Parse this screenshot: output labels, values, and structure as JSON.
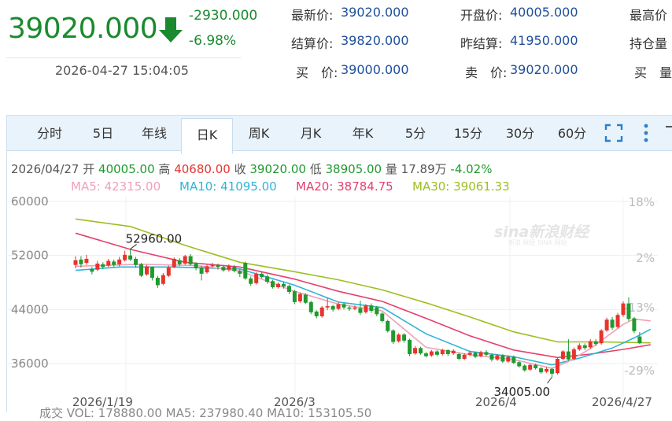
{
  "quote": {
    "price": "39020.000",
    "change": "-2930.000",
    "change_pct": "-6.98%",
    "datetime": "2026-04-27 15:04:05",
    "direction": "down-arrow-icon"
  },
  "fields": [
    {
      "label": "最新价:",
      "value": "39020.000"
    },
    {
      "label": "开盘价:",
      "value": "40005.000"
    },
    {
      "label": "最高价",
      "value": ""
    },
    {
      "label": "结算价:",
      "value": "39820.000"
    },
    {
      "label": "昨结算:",
      "value": "41950.000"
    },
    {
      "label": "持仓量",
      "value": ""
    },
    {
      "label": "买　价:",
      "value": "39000.000"
    },
    {
      "label": "卖　价:",
      "value": "39020.000"
    },
    {
      "label": "买　量",
      "value": ""
    }
  ],
  "tabs": [
    "分时",
    "5日",
    "年线",
    "日K",
    "周K",
    "月K",
    "年K",
    "5分",
    "15分",
    "30分",
    "60分"
  ],
  "active_tab": "日K",
  "info": {
    "date": "2026/04/27",
    "open_label": "开",
    "open": "40005.00",
    "high_label": "高",
    "high": "40680.00",
    "close_label": "收",
    "close": "39020.00",
    "low_label": "低",
    "low": "38905.00",
    "vol_label": "量",
    "vol": "17.89万",
    "pct": "-4.02%"
  },
  "ma": {
    "ma5": "MA5: 42315.00",
    "ma10": "MA10: 41095.00",
    "ma20": "MA20: 38784.75",
    "ma30": "MA30: 39061.33"
  },
  "watermark": {
    "logo": "sina新浪财经",
    "sub": "新浪 财经 SINA 网站"
  },
  "bottom_cut_text": "成交  VOL: 178880.00  MA5: 237980.40  MA10: 153105.50",
  "colors": {
    "up": "#e8332d",
    "down": "#1f9a2e",
    "ma5": "#f1a0b8",
    "ma10": "#2fb4d8",
    "ma20": "#e6406e",
    "ma30": "#9cbf1f",
    "price": "#1a8a2e",
    "value": "#1f4f9c"
  },
  "chart_data": {
    "type": "candlestick",
    "y_ticks": [
      "60000",
      "52000",
      "44000",
      "36000"
    ],
    "y_ticks_values": [
      60000,
      52000,
      44000,
      36000
    ],
    "pct_ticks": [
      "18%",
      "2%",
      "-13%",
      "-29%"
    ],
    "x_labels": [
      "2026/1/19",
      "2026/3",
      "2026/4",
      "2026/4/27"
    ],
    "ylim": [
      33000,
      61000
    ],
    "annotations": [
      {
        "text": "52960.00",
        "value": 52960,
        "candle": 10
      },
      {
        "text": "34005.00",
        "value": 34005,
        "candle": 87
      }
    ],
    "candles": [
      {
        "o": 50600,
        "c": 51300,
        "h": 51900,
        "l": 50100
      },
      {
        "o": 51400,
        "c": 50700,
        "h": 51900,
        "l": 50200
      },
      {
        "o": 50900,
        "c": 51500,
        "h": 52100,
        "l": 50600
      },
      {
        "o": 50000,
        "c": 49600,
        "h": 50300,
        "l": 49200
      },
      {
        "o": 49900,
        "c": 50800,
        "h": 51200,
        "l": 49700
      },
      {
        "o": 50700,
        "c": 50300,
        "h": 51000,
        "l": 50000
      },
      {
        "o": 50500,
        "c": 51200,
        "h": 51500,
        "l": 50300
      },
      {
        "o": 51100,
        "c": 50600,
        "h": 51400,
        "l": 50300
      },
      {
        "o": 50700,
        "c": 51400,
        "h": 51800,
        "l": 50400
      },
      {
        "o": 51300,
        "c": 52100,
        "h": 52700,
        "l": 51100
      },
      {
        "o": 52000,
        "c": 51400,
        "h": 52960,
        "l": 51200
      },
      {
        "o": 51500,
        "c": 50600,
        "h": 51800,
        "l": 50200
      },
      {
        "o": 50700,
        "c": 49000,
        "h": 50900,
        "l": 48800
      },
      {
        "o": 49200,
        "c": 50400,
        "h": 50600,
        "l": 49000
      },
      {
        "o": 50300,
        "c": 48700,
        "h": 50400,
        "l": 48300
      },
      {
        "o": 48700,
        "c": 47600,
        "h": 49000,
        "l": 47200
      },
      {
        "o": 47800,
        "c": 49100,
        "h": 49400,
        "l": 47600
      },
      {
        "o": 49000,
        "c": 50200,
        "h": 50500,
        "l": 48800
      },
      {
        "o": 50300,
        "c": 51500,
        "h": 51700,
        "l": 50100
      },
      {
        "o": 51300,
        "c": 50700,
        "h": 51600,
        "l": 50400
      },
      {
        "o": 50800,
        "c": 51900,
        "h": 52100,
        "l": 50600
      },
      {
        "o": 51900,
        "c": 50700,
        "h": 52200,
        "l": 50500
      },
      {
        "o": 50800,
        "c": 50100,
        "h": 51000,
        "l": 49800
      },
      {
        "o": 50200,
        "c": 49300,
        "h": 50500,
        "l": 48300
      },
      {
        "o": 49500,
        "c": 50400,
        "h": 50600,
        "l": 49300
      },
      {
        "o": 50400,
        "c": 50600,
        "h": 50900,
        "l": 50200
      },
      {
        "o": 50600,
        "c": 50300,
        "h": 50800,
        "l": 49900
      },
      {
        "o": 50300,
        "c": 49800,
        "h": 50600,
        "l": 49600
      },
      {
        "o": 49900,
        "c": 50500,
        "h": 50700,
        "l": 49600
      },
      {
        "o": 50300,
        "c": 49700,
        "h": 50600,
        "l": 49500
      },
      {
        "o": 49700,
        "c": 49300,
        "h": 50000,
        "l": 48800
      },
      {
        "o": 50900,
        "c": 48600,
        "h": 51100,
        "l": 48400
      },
      {
        "o": 48600,
        "c": 47800,
        "h": 48900,
        "l": 47500
      },
      {
        "o": 47900,
        "c": 49300,
        "h": 49500,
        "l": 47700
      },
      {
        "o": 49300,
        "c": 48800,
        "h": 49600,
        "l": 48600
      },
      {
        "o": 48900,
        "c": 48100,
        "h": 49200,
        "l": 47800
      },
      {
        "o": 48200,
        "c": 47300,
        "h": 48400,
        "l": 47100
      },
      {
        "o": 47300,
        "c": 47800,
        "h": 48000,
        "l": 47100
      },
      {
        "o": 47800,
        "c": 47400,
        "h": 48100,
        "l": 47100
      },
      {
        "o": 47500,
        "c": 46600,
        "h": 47700,
        "l": 46300
      },
      {
        "o": 46700,
        "c": 45100,
        "h": 46900,
        "l": 44800
      },
      {
        "o": 45200,
        "c": 46300,
        "h": 46500,
        "l": 45000
      },
      {
        "o": 46200,
        "c": 45000,
        "h": 46400,
        "l": 44800
      },
      {
        "o": 45100,
        "c": 43600,
        "h": 45300,
        "l": 43300
      },
      {
        "o": 43700,
        "c": 43000,
        "h": 43900,
        "l": 42700
      },
      {
        "o": 43000,
        "c": 44300,
        "h": 44500,
        "l": 42800
      },
      {
        "o": 44300,
        "c": 44500,
        "h": 45700,
        "l": 43900
      },
      {
        "o": 44500,
        "c": 44000,
        "h": 44700,
        "l": 43700
      },
      {
        "o": 44100,
        "c": 44800,
        "h": 45100,
        "l": 43900
      },
      {
        "o": 44800,
        "c": 44300,
        "h": 45000,
        "l": 44000
      },
      {
        "o": 44300,
        "c": 44100,
        "h": 44500,
        "l": 43800
      },
      {
        "o": 44100,
        "c": 44300,
        "h": 44600,
        "l": 43900
      },
      {
        "o": 44200,
        "c": 43500,
        "h": 45300,
        "l": 43200
      },
      {
        "o": 43600,
        "c": 44600,
        "h": 44800,
        "l": 43400
      },
      {
        "o": 44600,
        "c": 43800,
        "h": 44900,
        "l": 43500
      },
      {
        "o": 44300,
        "c": 43300,
        "h": 44500,
        "l": 43000
      },
      {
        "o": 43400,
        "c": 42300,
        "h": 43600,
        "l": 42100
      },
      {
        "o": 42300,
        "c": 40800,
        "h": 42500,
        "l": 40600
      },
      {
        "o": 40900,
        "c": 39200,
        "h": 41100,
        "l": 38900
      },
      {
        "o": 39300,
        "c": 40300,
        "h": 40500,
        "l": 39100
      },
      {
        "o": 40300,
        "c": 39400,
        "h": 40500,
        "l": 39100
      },
      {
        "o": 39500,
        "c": 37400,
        "h": 39700,
        "l": 37100
      },
      {
        "o": 37500,
        "c": 38300,
        "h": 38600,
        "l": 37300
      },
      {
        "o": 38300,
        "c": 37500,
        "h": 38500,
        "l": 37300
      },
      {
        "o": 37500,
        "c": 37100,
        "h": 37700,
        "l": 36900
      },
      {
        "o": 37200,
        "c": 37800,
        "h": 38000,
        "l": 37000
      },
      {
        "o": 37800,
        "c": 37300,
        "h": 38000,
        "l": 37100
      },
      {
        "o": 37400,
        "c": 38000,
        "h": 38200,
        "l": 37200
      },
      {
        "o": 38000,
        "c": 37400,
        "h": 38100,
        "l": 37100
      },
      {
        "o": 37500,
        "c": 37900,
        "h": 38100,
        "l": 37300
      },
      {
        "o": 37400,
        "c": 36700,
        "h": 37600,
        "l": 36500
      },
      {
        "o": 36700,
        "c": 37300,
        "h": 37500,
        "l": 36500
      },
      {
        "o": 37300,
        "c": 37600,
        "h": 37900,
        "l": 37100
      },
      {
        "o": 37600,
        "c": 37000,
        "h": 37800,
        "l": 36800
      },
      {
        "o": 37100,
        "c": 37700,
        "h": 37900,
        "l": 36900
      },
      {
        "o": 37700,
        "c": 37300,
        "h": 38000,
        "l": 37100
      },
      {
        "o": 37300,
        "c": 36600,
        "h": 37500,
        "l": 36300
      },
      {
        "o": 36600,
        "c": 37200,
        "h": 37400,
        "l": 36400
      },
      {
        "o": 37200,
        "c": 36300,
        "h": 37400,
        "l": 36100
      },
      {
        "o": 36300,
        "c": 37000,
        "h": 37200,
        "l": 36100
      },
      {
        "o": 37000,
        "c": 36100,
        "h": 37200,
        "l": 35900
      },
      {
        "o": 36200,
        "c": 35600,
        "h": 36400,
        "l": 35400
      },
      {
        "o": 35700,
        "c": 35000,
        "h": 35900,
        "l": 34800
      },
      {
        "o": 35100,
        "c": 35800,
        "h": 36000,
        "l": 34900
      },
      {
        "o": 35800,
        "c": 35300,
        "h": 36000,
        "l": 35100
      },
      {
        "o": 35300,
        "c": 34700,
        "h": 35500,
        "l": 34500
      },
      {
        "o": 34800,
        "c": 35200,
        "h": 35500,
        "l": 34600
      },
      {
        "o": 35200,
        "c": 34500,
        "h": 35400,
        "l": 34005
      },
      {
        "o": 34600,
        "c": 36700,
        "h": 36900,
        "l": 34400
      },
      {
        "o": 36700,
        "c": 37800,
        "h": 38000,
        "l": 36500
      },
      {
        "o": 37800,
        "c": 36600,
        "h": 39600,
        "l": 36400
      },
      {
        "o": 36700,
        "c": 38100,
        "h": 38400,
        "l": 36500
      },
      {
        "o": 38100,
        "c": 38700,
        "h": 39000,
        "l": 37900
      },
      {
        "o": 38700,
        "c": 38300,
        "h": 39000,
        "l": 38000
      },
      {
        "o": 38400,
        "c": 39300,
        "h": 39600,
        "l": 38200
      },
      {
        "o": 39300,
        "c": 38900,
        "h": 39600,
        "l": 38600
      },
      {
        "o": 39000,
        "c": 40900,
        "h": 41100,
        "l": 38800
      },
      {
        "o": 40900,
        "c": 42500,
        "h": 42800,
        "l": 40700
      },
      {
        "o": 42500,
        "c": 41300,
        "h": 42900,
        "l": 41000
      },
      {
        "o": 41400,
        "c": 43200,
        "h": 43500,
        "l": 41200
      },
      {
        "o": 43200,
        "c": 44900,
        "h": 45200,
        "l": 42900
      },
      {
        "o": 44900,
        "c": 42600,
        "h": 45800,
        "l": 42300
      },
      {
        "o": 42700,
        "c": 40800,
        "h": 42900,
        "l": 40500
      },
      {
        "o": 40005,
        "c": 39020,
        "h": 40680,
        "l": 38905
      }
    ],
    "ma_series": [
      {
        "name": "MA5",
        "values": [
          [
            0,
            50400
          ],
          [
            12,
            50700
          ],
          [
            22,
            50500
          ],
          [
            30,
            49700
          ],
          [
            40,
            46700
          ],
          [
            48,
            44800
          ],
          [
            56,
            43800
          ],
          [
            64,
            38400
          ],
          [
            72,
            37300
          ],
          [
            80,
            36600
          ],
          [
            87,
            35300
          ],
          [
            90,
            36300
          ],
          [
            94,
            38200
          ],
          [
            100,
            41800
          ],
          [
            102,
            42600
          ],
          [
            105,
            42315
          ]
        ]
      },
      {
        "name": "MA10",
        "values": [
          [
            0,
            49800
          ],
          [
            8,
            50300
          ],
          [
            18,
            50300
          ],
          [
            30,
            50000
          ],
          [
            40,
            47600
          ],
          [
            48,
            45100
          ],
          [
            56,
            44300
          ],
          [
            64,
            40400
          ],
          [
            72,
            37800
          ],
          [
            80,
            37000
          ],
          [
            87,
            35800
          ],
          [
            92,
            36800
          ],
          [
            98,
            38300
          ],
          [
            102,
            39800
          ],
          [
            105,
            41095
          ]
        ]
      },
      {
        "name": "MA20",
        "values": [
          [
            0,
            55300
          ],
          [
            10,
            52900
          ],
          [
            20,
            51000
          ],
          [
            30,
            50300
          ],
          [
            40,
            48500
          ],
          [
            48,
            46700
          ],
          [
            56,
            45200
          ],
          [
            64,
            42700
          ],
          [
            72,
            40100
          ],
          [
            80,
            38000
          ],
          [
            88,
            36900
          ],
          [
            94,
            37400
          ],
          [
            100,
            38100
          ],
          [
            105,
            38785
          ]
        ]
      },
      {
        "name": "MA30",
        "values": [
          [
            0,
            57400
          ],
          [
            10,
            56300
          ],
          [
            20,
            53500
          ],
          [
            30,
            51000
          ],
          [
            40,
            49600
          ],
          [
            48,
            48400
          ],
          [
            56,
            46900
          ],
          [
            64,
            45000
          ],
          [
            72,
            42900
          ],
          [
            80,
            40700
          ],
          [
            88,
            39200
          ],
          [
            96,
            39200
          ],
          [
            105,
            39061
          ]
        ]
      }
    ]
  }
}
